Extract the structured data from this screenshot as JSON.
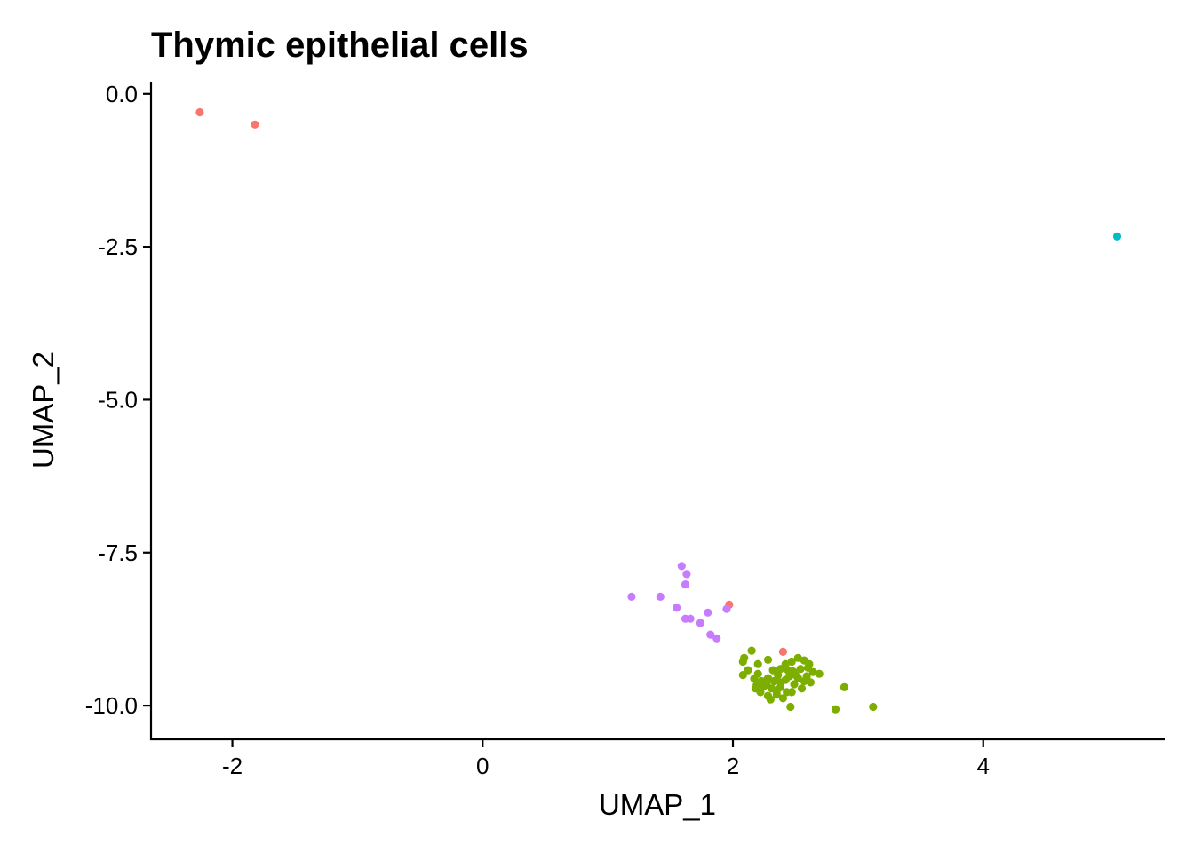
{
  "chart_data": {
    "type": "scatter",
    "title": "Thymic epithelial cells",
    "xlabel": "UMAP_1",
    "ylabel": "UMAP_2",
    "xlim": [
      -2.65,
      5.45
    ],
    "ylim": [
      -10.55,
      0.2
    ],
    "xticks": [
      -2,
      0,
      2,
      4
    ],
    "xtick_labels": [
      "-2",
      "0",
      "2",
      "4"
    ],
    "yticks": [
      0.0,
      -2.5,
      -5.0,
      -7.5,
      -10.0
    ],
    "ytick_labels": [
      "0.0",
      "-2.5",
      "-5.0",
      "-7.5",
      "-10.0"
    ],
    "grid": false,
    "legend": "none",
    "series": [
      {
        "color": "#F8766D",
        "points": [
          [
            -2.26,
            -0.3
          ],
          [
            -1.82,
            -0.5
          ],
          [
            1.97,
            -8.35
          ],
          [
            2.4,
            -9.12
          ]
        ]
      },
      {
        "color": "#7CAE00",
        "points": [
          [
            2.15,
            -9.1
          ],
          [
            2.09,
            -9.22
          ],
          [
            2.08,
            -9.28
          ],
          [
            2.2,
            -9.32
          ],
          [
            2.28,
            -9.25
          ],
          [
            2.12,
            -9.42
          ],
          [
            2.2,
            -9.48
          ],
          [
            2.08,
            -9.5
          ],
          [
            2.17,
            -9.56
          ],
          [
            2.23,
            -9.6
          ],
          [
            2.28,
            -9.55
          ],
          [
            2.33,
            -9.6
          ],
          [
            2.25,
            -9.68
          ],
          [
            2.31,
            -9.72
          ],
          [
            2.18,
            -9.72
          ],
          [
            2.38,
            -9.7
          ],
          [
            2.22,
            -9.78
          ],
          [
            2.28,
            -9.84
          ],
          [
            2.35,
            -9.82
          ],
          [
            2.43,
            -9.78
          ],
          [
            2.4,
            -9.88
          ],
          [
            2.3,
            -9.9
          ],
          [
            2.38,
            -9.62
          ],
          [
            2.45,
            -9.52
          ],
          [
            2.48,
            -9.44
          ],
          [
            2.54,
            -9.4
          ],
          [
            2.6,
            -9.38
          ],
          [
            2.64,
            -9.45
          ],
          [
            2.69,
            -9.48
          ],
          [
            2.52,
            -9.55
          ],
          [
            2.57,
            -9.6
          ],
          [
            2.62,
            -9.62
          ],
          [
            2.49,
            -9.65
          ],
          [
            2.55,
            -9.72
          ],
          [
            2.47,
            -9.78
          ],
          [
            2.42,
            -9.32
          ],
          [
            2.47,
            -9.28
          ],
          [
            2.52,
            -9.22
          ],
          [
            2.57,
            -9.26
          ],
          [
            2.61,
            -9.32
          ],
          [
            2.38,
            -9.4
          ],
          [
            2.44,
            -9.42
          ],
          [
            2.5,
            -9.5
          ],
          [
            2.59,
            -9.52
          ],
          [
            2.36,
            -9.5
          ],
          [
            2.32,
            -9.42
          ],
          [
            2.27,
            -9.65
          ],
          [
            2.35,
            -9.76
          ],
          [
            2.46,
            -10.02
          ],
          [
            2.89,
            -9.7
          ],
          [
            2.82,
            -10.06
          ],
          [
            3.12,
            -10.02
          ],
          [
            2.19,
            -9.66
          ],
          [
            2.42,
            -9.58
          ]
        ]
      },
      {
        "color": "#00BFC4",
        "points": [
          [
            5.07,
            -2.33
          ]
        ]
      },
      {
        "color": "#C77CFF",
        "points": [
          [
            1.59,
            -7.72
          ],
          [
            1.63,
            -7.85
          ],
          [
            1.62,
            -8.02
          ],
          [
            1.19,
            -8.22
          ],
          [
            1.42,
            -8.22
          ],
          [
            1.55,
            -8.4
          ],
          [
            1.8,
            -8.48
          ],
          [
            1.95,
            -8.42
          ],
          [
            1.62,
            -8.58
          ],
          [
            1.66,
            -8.58
          ],
          [
            1.74,
            -8.65
          ],
          [
            1.82,
            -8.84
          ],
          [
            1.87,
            -8.9
          ]
        ]
      }
    ]
  }
}
